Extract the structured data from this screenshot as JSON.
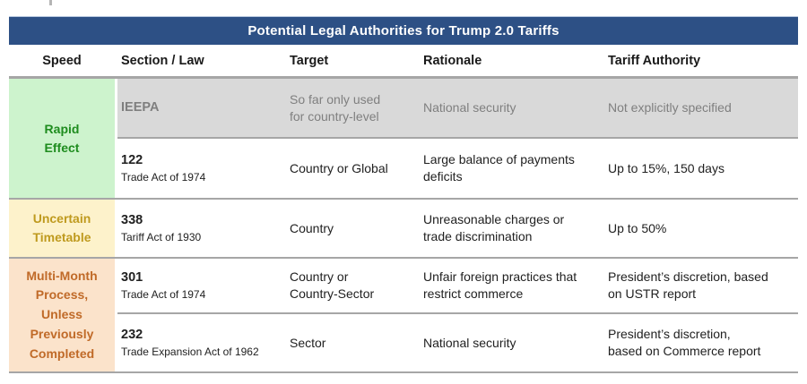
{
  "title": "Potential Legal Authorities for Trump 2.0 Tariffs",
  "header": {
    "speed": "Speed",
    "section_law": "Section / Law",
    "target": "Target",
    "rationale": "Rationale",
    "tariff_authority": "Tariff Authority"
  },
  "speed_groups": [
    {
      "label": "Rapid\nEffect"
    },
    {
      "label": "Uncertain\nTimetable"
    },
    {
      "label": "Multi-Month\nProcess,\nUnless\nPreviously\nCompleted"
    }
  ],
  "rows": [
    {
      "section": "IEEPA",
      "law": "",
      "target": "So far only used\nfor country-level",
      "rationale": "National security",
      "authority": "Not explicitly specified"
    },
    {
      "section": "122",
      "law": "Trade Act of 1974",
      "target": "Country or Global",
      "rationale": "Large balance of payments\ndeficits",
      "authority": "Up to 15%, 150 days"
    },
    {
      "section": "338",
      "law": "Tariff Act of 1930",
      "target": "Country",
      "rationale": "Unreasonable charges or\ntrade discrimination",
      "authority": "Up to 50%"
    },
    {
      "section": "301",
      "law": "Trade Act of 1974",
      "target": "Country or\nCountry-Sector",
      "rationale": "Unfair foreign practices that\nrestrict commerce",
      "authority": "President’s discretion, based\non USTR report"
    },
    {
      "section": "232",
      "law": "Trade Expansion Act of 1962",
      "target": "Sector",
      "rationale": "National security",
      "authority": "President’s discretion,\nbased on Commerce report"
    }
  ],
  "colors": {
    "title_bar": "#2d5085",
    "rapid_bg": "#cdf3cd",
    "rapid_text": "#1e8c1e",
    "uncertain_bg": "#fdf2cb",
    "uncertain_text": "#bf9a1e",
    "multi_bg": "#fbe3cb",
    "multi_text": "#c06a28",
    "muted_row_bg": "#d9d9d9",
    "muted_row_text": "#7f7f7f",
    "divider": "#a6a6a6"
  },
  "chart_data": {
    "type": "table",
    "title": "Potential Legal Authorities for Trump 2.0 Tariffs",
    "columns": [
      "Speed",
      "Section / Law",
      "Target",
      "Rationale",
      "Tariff Authority"
    ],
    "rows": [
      [
        "Rapid Effect",
        "IEEPA",
        "So far only used for country-level",
        "National security",
        "Not explicitly specified"
      ],
      [
        "Rapid Effect",
        "122 — Trade Act of 1974",
        "Country or Global",
        "Large balance of payments deficits",
        "Up to 15%, 150 days"
      ],
      [
        "Uncertain Timetable",
        "338 — Tariff Act of 1930",
        "Country",
        "Unreasonable charges or trade discrimination",
        "Up to 50%"
      ],
      [
        "Multi-Month Process, Unless Previously Completed",
        "301 — Trade Act of 1974",
        "Country or Country-Sector",
        "Unfair foreign practices that restrict commerce",
        "President’s discretion, based on USTR report"
      ],
      [
        "Multi-Month Process, Unless Previously Completed",
        "232 — Trade Expansion Act of 1962",
        "Sector",
        "National security",
        "President’s discretion, based on Commerce report"
      ]
    ],
    "legend_position": "none",
    "grid": "horizontal-dividers"
  }
}
